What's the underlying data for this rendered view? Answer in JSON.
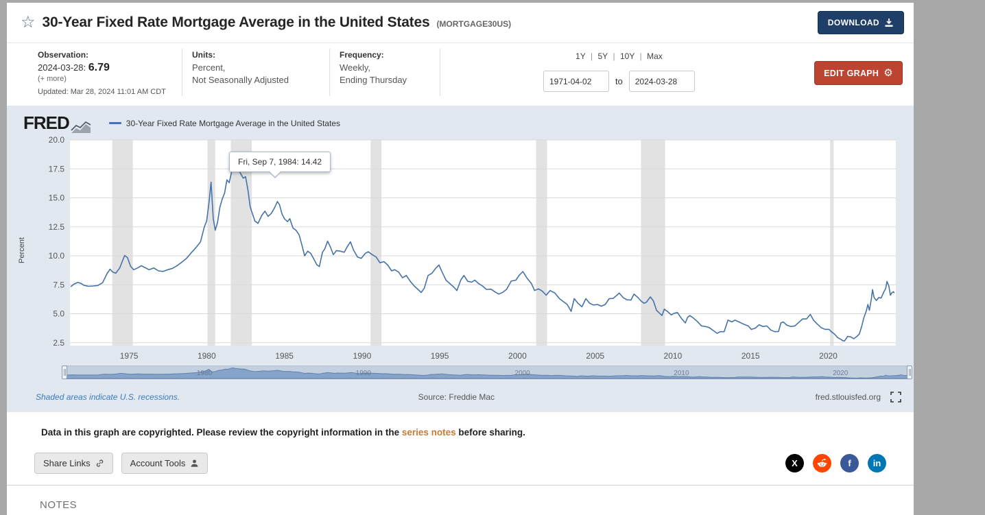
{
  "icons": {
    "star": "☆",
    "gear": "⚙"
  },
  "header": {
    "title": "30-Year Fixed Rate Mortgage Average in the United States",
    "series_id": "(MORTGAGE30US)",
    "download_label": "DOWNLOAD"
  },
  "meta": {
    "observation_label": "Observation:",
    "observation_date": "2024-03-28:",
    "observation_value": "6.79",
    "more_label": "(+ more)",
    "updated": "Updated: Mar 28, 2024 11:01 AM CDT",
    "units_label": "Units:",
    "units_line1": "Percent,",
    "units_line2": "Not Seasonally Adjusted",
    "frequency_label": "Frequency:",
    "frequency_line1": "Weekly,",
    "frequency_line2": "Ending Thursday"
  },
  "range_controls": {
    "presets": [
      "1Y",
      "5Y",
      "10Y",
      "Max"
    ],
    "separator": "|",
    "start_date": "1971-04-02",
    "to_label": "to",
    "end_date": "2024-03-28",
    "edit_graph_label": "EDIT GRAPH"
  },
  "chart": {
    "logo": "FRED",
    "legend_label": "30-Year Fixed Rate Mortgage Average in the United States",
    "y_axis_label": "Percent",
    "tooltip": "Fri, Sep 7, 1984: 14.42",
    "footer_left": "Shaded areas indicate U.S. recessions.",
    "footer_center": "Source: Freddie Mac",
    "footer_right": "fred.stlouisfed.org"
  },
  "chart_data": {
    "type": "line",
    "title": "30-Year Fixed Rate Mortgage Average in the United States",
    "xlabel": "",
    "ylabel": "Percent",
    "xlim": [
      1971.2,
      2024.35
    ],
    "ylim": [
      2.25,
      20.0
    ],
    "y_ticks": [
      2.5,
      5.0,
      7.5,
      10.0,
      12.5,
      15.0,
      17.5,
      20.0
    ],
    "x_ticks": [
      1975,
      1980,
      1985,
      1990,
      1995,
      2000,
      2005,
      2010,
      2015,
      2020
    ],
    "line_color": "#4572a7",
    "recession_color": "#e2e2e2",
    "legend_position": "top",
    "grid": true,
    "series_name": "30-Year Fixed Rate Mortgage Average in the United States",
    "highlight_point": {
      "label": "Fri, Sep 7, 1984",
      "x": 1984.68,
      "y": 14.42
    },
    "recessions": [
      [
        1973.92,
        1975.25
      ],
      [
        1980.05,
        1980.55
      ],
      [
        1981.55,
        1982.9
      ],
      [
        1990.55,
        1991.25
      ],
      [
        2001.2,
        2001.9
      ],
      [
        2007.95,
        2009.5
      ],
      [
        2020.12,
        2020.35
      ]
    ],
    "slider_year_labels": [
      "1980",
      "1990",
      "2000",
      "2010",
      "2020"
    ],
    "points": [
      [
        1971.25,
        7.33
      ],
      [
        1971.45,
        7.55
      ],
      [
        1971.7,
        7.7
      ],
      [
        1971.9,
        7.62
      ],
      [
        1972.1,
        7.45
      ],
      [
        1972.4,
        7.37
      ],
      [
        1972.7,
        7.4
      ],
      [
        1973.0,
        7.44
      ],
      [
        1973.3,
        7.68
      ],
      [
        1973.6,
        8.5
      ],
      [
        1973.78,
        8.85
      ],
      [
        1973.95,
        8.6
      ],
      [
        1974.15,
        8.5
      ],
      [
        1974.4,
        8.95
      ],
      [
        1974.72,
        10.03
      ],
      [
        1974.9,
        9.85
      ],
      [
        1975.1,
        9.1
      ],
      [
        1975.3,
        8.8
      ],
      [
        1975.55,
        8.95
      ],
      [
        1975.8,
        9.15
      ],
      [
        1976.0,
        9.0
      ],
      [
        1976.3,
        8.8
      ],
      [
        1976.6,
        8.95
      ],
      [
        1976.9,
        8.7
      ],
      [
        1977.2,
        8.65
      ],
      [
        1977.5,
        8.8
      ],
      [
        1977.8,
        8.92
      ],
      [
        1978.1,
        9.15
      ],
      [
        1978.4,
        9.45
      ],
      [
        1978.7,
        9.78
      ],
      [
        1979.0,
        10.25
      ],
      [
        1979.3,
        10.7
      ],
      [
        1979.6,
        11.2
      ],
      [
        1979.85,
        12.5
      ],
      [
        1980.0,
        13.0
      ],
      [
        1980.15,
        14.6
      ],
      [
        1980.28,
        16.35
      ],
      [
        1980.42,
        13.2
      ],
      [
        1980.55,
        12.2
      ],
      [
        1980.7,
        12.9
      ],
      [
        1980.85,
        14.2
      ],
      [
        1981.0,
        14.9
      ],
      [
        1981.15,
        15.4
      ],
      [
        1981.3,
        16.55
      ],
      [
        1981.45,
        16.3
      ],
      [
        1981.6,
        17.25
      ],
      [
        1981.78,
        18.63
      ],
      [
        1981.9,
        17.85
      ],
      [
        1982.05,
        17.4
      ],
      [
        1982.2,
        17.05
      ],
      [
        1982.35,
        16.7
      ],
      [
        1982.5,
        16.82
      ],
      [
        1982.65,
        15.7
      ],
      [
        1982.8,
        14.2
      ],
      [
        1982.95,
        13.6
      ],
      [
        1983.1,
        13.0
      ],
      [
        1983.3,
        12.8
      ],
      [
        1983.55,
        13.5
      ],
      [
        1983.75,
        13.85
      ],
      [
        1983.95,
        13.4
      ],
      [
        1984.15,
        13.65
      ],
      [
        1984.35,
        14.1
      ],
      [
        1984.55,
        14.68
      ],
      [
        1984.68,
        14.42
      ],
      [
        1984.85,
        13.6
      ],
      [
        1985.0,
        13.2
      ],
      [
        1985.2,
        12.95
      ],
      [
        1985.35,
        13.2
      ],
      [
        1985.55,
        12.4
      ],
      [
        1985.75,
        12.2
      ],
      [
        1985.95,
        11.8
      ],
      [
        1986.15,
        10.8
      ],
      [
        1986.3,
        10.0
      ],
      [
        1986.5,
        10.4
      ],
      [
        1986.7,
        10.2
      ],
      [
        1986.9,
        9.7
      ],
      [
        1987.1,
        9.2
      ],
      [
        1987.25,
        9.08
      ],
      [
        1987.45,
        10.3
      ],
      [
        1987.6,
        10.6
      ],
      [
        1987.78,
        11.26
      ],
      [
        1987.95,
        10.8
      ],
      [
        1988.15,
        10.1
      ],
      [
        1988.35,
        10.45
      ],
      [
        1988.6,
        10.4
      ],
      [
        1988.85,
        10.3
      ],
      [
        1989.05,
        10.8
      ],
      [
        1989.25,
        11.2
      ],
      [
        1989.45,
        10.5
      ],
      [
        1989.7,
        9.9
      ],
      [
        1989.95,
        9.78
      ],
      [
        1990.2,
        10.2
      ],
      [
        1990.4,
        10.35
      ],
      [
        1990.65,
        10.1
      ],
      [
        1990.9,
        9.9
      ],
      [
        1991.15,
        9.4
      ],
      [
        1991.4,
        9.5
      ],
      [
        1991.65,
        9.2
      ],
      [
        1991.9,
        8.7
      ],
      [
        1992.1,
        8.8
      ],
      [
        1992.35,
        8.6
      ],
      [
        1992.6,
        8.1
      ],
      [
        1992.85,
        8.3
      ],
      [
        1993.1,
        7.8
      ],
      [
        1993.35,
        7.4
      ],
      [
        1993.6,
        7.1
      ],
      [
        1993.8,
        6.83
      ],
      [
        1994.0,
        7.2
      ],
      [
        1994.25,
        8.3
      ],
      [
        1994.5,
        8.5
      ],
      [
        1994.75,
        8.95
      ],
      [
        1994.95,
        9.2
      ],
      [
        1995.15,
        8.6
      ],
      [
        1995.4,
        7.9
      ],
      [
        1995.65,
        7.6
      ],
      [
        1995.9,
        7.3
      ],
      [
        1996.1,
        7.0
      ],
      [
        1996.35,
        7.9
      ],
      [
        1996.55,
        8.3
      ],
      [
        1996.8,
        7.8
      ],
      [
        1997.05,
        7.72
      ],
      [
        1997.25,
        7.9
      ],
      [
        1997.5,
        7.6
      ],
      [
        1997.75,
        7.4
      ],
      [
        1998.0,
        7.1
      ],
      [
        1998.3,
        7.12
      ],
      [
        1998.6,
        6.85
      ],
      [
        1998.8,
        6.7
      ],
      [
        1999.05,
        6.85
      ],
      [
        1999.3,
        7.1
      ],
      [
        1999.6,
        7.82
      ],
      [
        1999.9,
        7.9
      ],
      [
        2000.1,
        8.3
      ],
      [
        2000.35,
        8.64
      ],
      [
        2000.6,
        8.1
      ],
      [
        2000.9,
        7.6
      ],
      [
        2001.1,
        7.0
      ],
      [
        2001.35,
        7.15
      ],
      [
        2001.6,
        6.95
      ],
      [
        2001.85,
        6.6
      ],
      [
        2002.1,
        7.0
      ],
      [
        2002.4,
        6.8
      ],
      [
        2002.7,
        6.3
      ],
      [
        2002.95,
        6.05
      ],
      [
        2003.2,
        5.8
      ],
      [
        2003.45,
        5.21
      ],
      [
        2003.65,
        6.3
      ],
      [
        2003.9,
        5.9
      ],
      [
        2004.15,
        5.6
      ],
      [
        2004.4,
        6.3
      ],
      [
        2004.65,
        5.9
      ],
      [
        2004.9,
        5.75
      ],
      [
        2005.15,
        5.8
      ],
      [
        2005.4,
        5.65
      ],
      [
        2005.65,
        5.8
      ],
      [
        2005.9,
        6.3
      ],
      [
        2006.15,
        6.32
      ],
      [
        2006.4,
        6.6
      ],
      [
        2006.55,
        6.78
      ],
      [
        2006.8,
        6.4
      ],
      [
        2007.05,
        6.2
      ],
      [
        2007.3,
        6.18
      ],
      [
        2007.5,
        6.7
      ],
      [
        2007.75,
        6.4
      ],
      [
        2007.95,
        6.1
      ],
      [
        2008.15,
        5.9
      ],
      [
        2008.3,
        6.0
      ],
      [
        2008.55,
        6.45
      ],
      [
        2008.75,
        6.1
      ],
      [
        2008.95,
        5.3
      ],
      [
        2009.1,
        5.1
      ],
      [
        2009.3,
        4.85
      ],
      [
        2009.45,
        5.4
      ],
      [
        2009.65,
        5.2
      ],
      [
        2009.9,
        4.9
      ],
      [
        2010.1,
        5.05
      ],
      [
        2010.3,
        5.1
      ],
      [
        2010.55,
        4.6
      ],
      [
        2010.8,
        4.2
      ],
      [
        2010.95,
        4.7
      ],
      [
        2011.1,
        4.85
      ],
      [
        2011.35,
        4.6
      ],
      [
        2011.6,
        4.3
      ],
      [
        2011.85,
        3.95
      ],
      [
        2012.1,
        3.9
      ],
      [
        2012.35,
        3.8
      ],
      [
        2012.6,
        3.55
      ],
      [
        2012.85,
        3.31
      ],
      [
        2013.05,
        3.45
      ],
      [
        2013.3,
        3.45
      ],
      [
        2013.55,
        4.45
      ],
      [
        2013.8,
        4.3
      ],
      [
        2014.0,
        4.45
      ],
      [
        2014.25,
        4.3
      ],
      [
        2014.55,
        4.1
      ],
      [
        2014.85,
        3.95
      ],
      [
        2015.05,
        3.65
      ],
      [
        2015.3,
        3.75
      ],
      [
        2015.55,
        4.05
      ],
      [
        2015.8,
        3.9
      ],
      [
        2016.05,
        3.95
      ],
      [
        2016.3,
        3.6
      ],
      [
        2016.55,
        3.45
      ],
      [
        2016.8,
        3.47
      ],
      [
        2016.95,
        4.2
      ],
      [
        2017.1,
        4.3
      ],
      [
        2017.35,
        4.0
      ],
      [
        2017.6,
        3.9
      ],
      [
        2017.85,
        3.95
      ],
      [
        2018.1,
        4.25
      ],
      [
        2018.35,
        4.55
      ],
      [
        2018.6,
        4.55
      ],
      [
        2018.85,
        4.94
      ],
      [
        2019.05,
        4.45
      ],
      [
        2019.3,
        4.1
      ],
      [
        2019.55,
        3.8
      ],
      [
        2019.8,
        3.65
      ],
      [
        2020.05,
        3.65
      ],
      [
        2020.2,
        3.45
      ],
      [
        2020.4,
        3.25
      ],
      [
        2020.6,
        2.95
      ],
      [
        2020.8,
        2.8
      ],
      [
        2020.95,
        2.67
      ],
      [
        2021.05,
        2.65
      ],
      [
        2021.25,
        3.05
      ],
      [
        2021.45,
        3.0
      ],
      [
        2021.65,
        2.85
      ],
      [
        2021.85,
        3.05
      ],
      [
        2022.0,
        3.25
      ],
      [
        2022.15,
        3.9
      ],
      [
        2022.3,
        4.7
      ],
      [
        2022.45,
        5.25
      ],
      [
        2022.55,
        5.8
      ],
      [
        2022.65,
        5.3
      ],
      [
        2022.78,
        6.3
      ],
      [
        2022.85,
        7.08
      ],
      [
        2022.95,
        6.4
      ],
      [
        2023.1,
        6.15
      ],
      [
        2023.25,
        6.4
      ],
      [
        2023.4,
        6.35
      ],
      [
        2023.55,
        6.8
      ],
      [
        2023.7,
        7.2
      ],
      [
        2023.78,
        7.79
      ],
      [
        2023.9,
        7.4
      ],
      [
        2024.0,
        6.6
      ],
      [
        2024.1,
        6.82
      ],
      [
        2024.2,
        6.9
      ],
      [
        2024.25,
        6.79
      ]
    ]
  },
  "copyright": {
    "text_before": "Data in this graph are copyrighted. Please review the copyright information in the ",
    "link": "series notes",
    "text_after": " before sharing."
  },
  "share": {
    "share_links_label": "Share Links",
    "account_tools_label": "Account Tools",
    "social": [
      {
        "name": "x-icon",
        "color": "#000000",
        "glyph": "X"
      },
      {
        "name": "reddit-icon",
        "color": "#ff4500",
        "glyph": ""
      },
      {
        "name": "facebook-icon",
        "color": "#3b5998",
        "glyph": "f"
      },
      {
        "name": "linkedin-icon",
        "color": "#0077b5",
        "glyph": "in"
      }
    ]
  },
  "notes": {
    "title": "NOTES"
  }
}
